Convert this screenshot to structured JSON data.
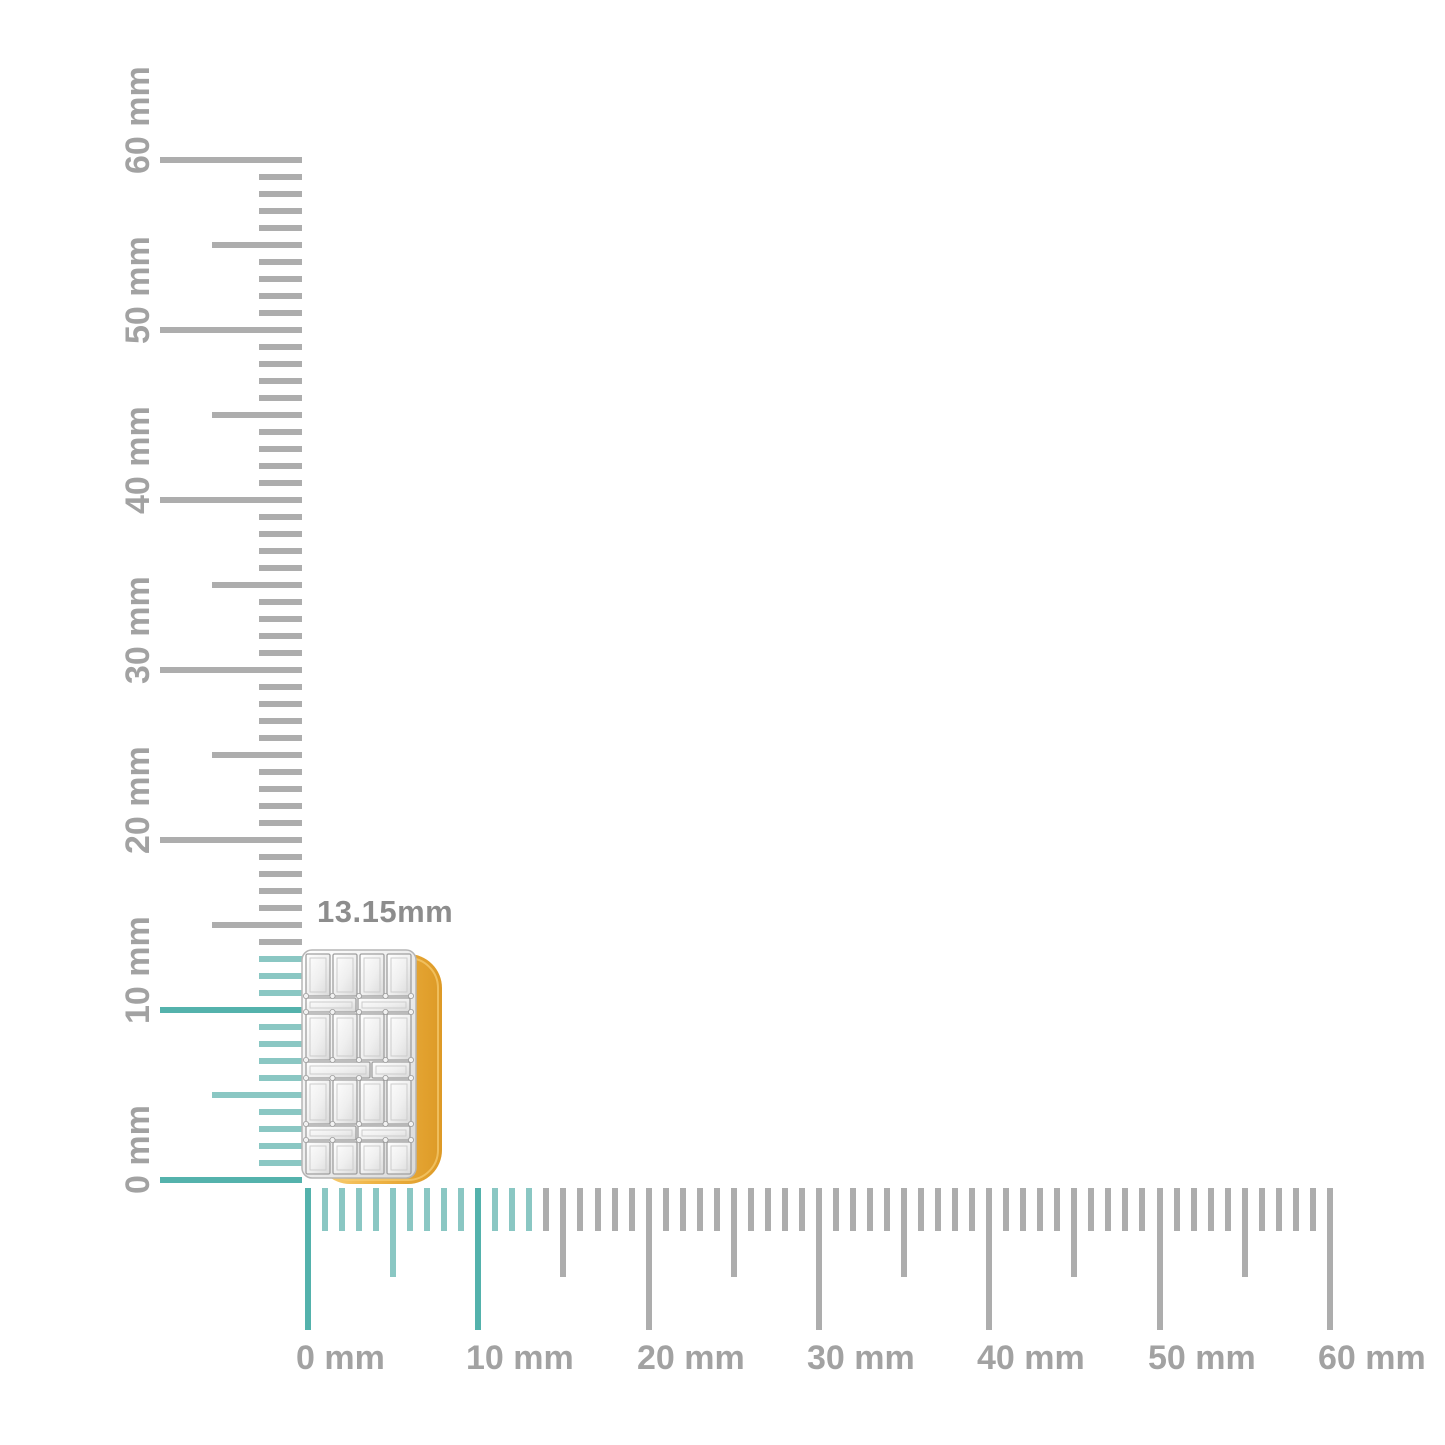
{
  "page": {
    "background": "#ffffff"
  },
  "measurement": {
    "label": "13.15mm",
    "color": "#8d8d8d"
  },
  "vertical_ruler": {
    "unit": "mm",
    "min_mm": 0,
    "max_mm": 60,
    "major_step_mm": 10,
    "medium_step_mm": 5,
    "highlight_to_mm": 13,
    "labels": [
      "0 mm",
      "10 mm",
      "20 mm",
      "30 mm",
      "40 mm",
      "50 mm",
      "60 mm"
    ]
  },
  "horizontal_ruler": {
    "unit": "mm",
    "min_mm": 0,
    "max_mm": 60,
    "major_step_mm": 10,
    "medium_step_mm": 5,
    "highlight_to_mm": 13,
    "labels": [
      "0 mm",
      "10 mm",
      "20 mm",
      "30 mm",
      "40 mm",
      "50 mm",
      "60 mm"
    ]
  },
  "colors": {
    "tick_gray": "#adadad",
    "label_gray": "#a2a2a2",
    "tick_teal": "#8ac7c3",
    "tick_teal_major": "#54b2ac",
    "gold": "#efb446",
    "gold_dark": "#dd9a26",
    "gold_light": "#f9d27c",
    "diamond_face": "#f0f0f0",
    "diamond_edge": "#9f9f9f"
  },
  "item": {
    "icon": "diamond-baguette-earring"
  }
}
